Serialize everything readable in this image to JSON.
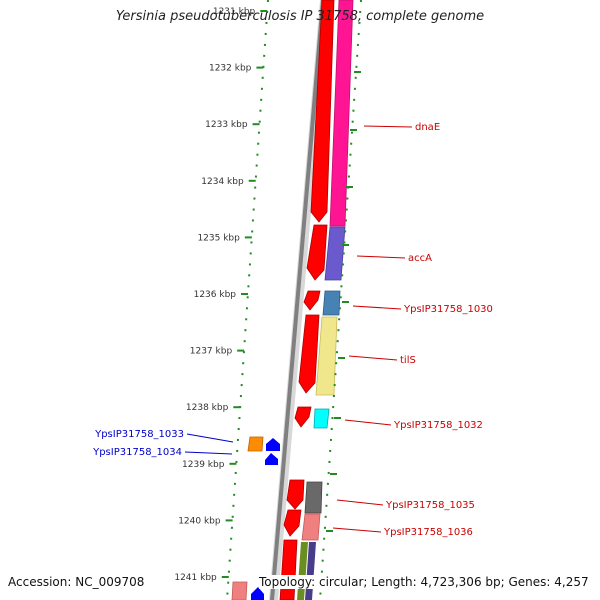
{
  "title": "Yersinia pseudotuberculosis IP 31758, complete genome",
  "accession": "Accession: NC_009708",
  "topology": "Topology: circular; Length: 4,723,306 bp; Genes: 4,257",
  "kbp_ticks": [
    {
      "label": "1231 kbp",
      "kbp": 1231
    },
    {
      "label": "1232 kbp",
      "kbp": 1232
    },
    {
      "label": "1233 kbp",
      "kbp": 1233
    },
    {
      "label": "1234 kbp",
      "kbp": 1234
    },
    {
      "label": "1235 kbp",
      "kbp": 1235
    },
    {
      "label": "1236 kbp",
      "kbp": 1236
    },
    {
      "label": "1237 kbp",
      "kbp": 1237
    },
    {
      "label": "1238 kbp",
      "kbp": 1238
    },
    {
      "label": "1239 kbp",
      "kbp": 1239
    },
    {
      "label": "1240 kbp",
      "kbp": 1240
    },
    {
      "label": "1241 kbp",
      "kbp": 1241
    }
  ],
  "forward_genes": [
    {
      "name": "dnaE",
      "color": "#ff1493"
    },
    {
      "name": "accA",
      "color": "#6a5acd"
    },
    {
      "name": "YpsIP31758_1030",
      "color": "#4682b4"
    },
    {
      "name": "tilS",
      "color": "#f0e68c"
    },
    {
      "name": "YpsIP31758_1032",
      "color": "#00ffff"
    },
    {
      "name": "YpsIP31758_1035",
      "color": "#696969"
    },
    {
      "name": "YpsIP31758_1036",
      "color": "#f08080"
    }
  ],
  "reverse_genes": [
    {
      "name": "YpsIP31758_1033",
      "color": "#ff8c00"
    },
    {
      "name": "YpsIP31758_1034",
      "color": "#0000ff"
    }
  ],
  "colors": {
    "backbone": "#808080",
    "cds": "#ff0000",
    "tick": "#228b22",
    "label_forward": "#cc0000",
    "label_reverse": "#0000cc"
  }
}
